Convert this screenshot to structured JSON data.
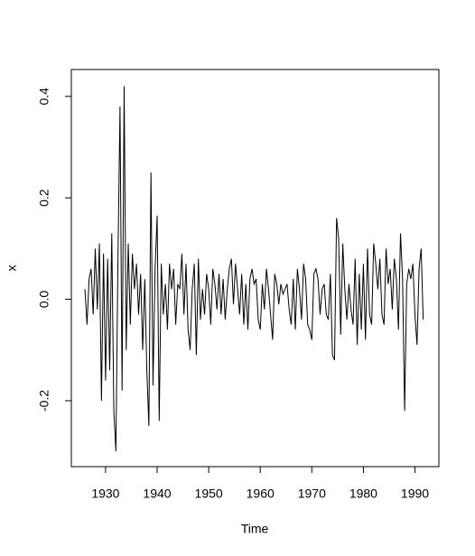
{
  "chart_data": {
    "type": "line",
    "xlabel": "Time",
    "ylabel": "x",
    "color": "#000000",
    "x": [
      1926,
      1926.4,
      1926.8,
      1927.2,
      1927.6,
      1928,
      1928.4,
      1928.8,
      1929.2,
      1929.6,
      1930,
      1930.4,
      1930.8,
      1931.2,
      1931.6,
      1932,
      1932.4,
      1932.8,
      1933.2,
      1933.6,
      1934,
      1934.4,
      1934.8,
      1935.2,
      1935.6,
      1936,
      1936.4,
      1936.8,
      1937.2,
      1937.6,
      1938,
      1938.4,
      1938.8,
      1939.2,
      1939.6,
      1940,
      1940.4,
      1940.8,
      1941.2,
      1941.6,
      1942,
      1942.4,
      1942.8,
      1943.2,
      1943.6,
      1944,
      1944.4,
      1944.8,
      1945.2,
      1945.6,
      1946,
      1946.4,
      1946.8,
      1947.2,
      1947.6,
      1948,
      1948.4,
      1948.8,
      1949.2,
      1949.6,
      1950,
      1950.4,
      1950.8,
      1951.2,
      1951.6,
      1952,
      1952.4,
      1952.8,
      1953.2,
      1953.6,
      1954,
      1954.4,
      1954.8,
      1955.2,
      1955.6,
      1956,
      1956.4,
      1956.8,
      1957.2,
      1957.6,
      1958,
      1958.4,
      1958.8,
      1959.2,
      1959.6,
      1960,
      1960.4,
      1960.8,
      1961.2,
      1961.6,
      1962,
      1962.4,
      1962.8,
      1963.2,
      1963.6,
      1964,
      1964.4,
      1964.8,
      1965.2,
      1965.6,
      1966,
      1966.4,
      1966.8,
      1967.2,
      1967.6,
      1968,
      1968.4,
      1968.8,
      1969.2,
      1969.6,
      1970,
      1970.4,
      1970.8,
      1971.2,
      1971.6,
      1972,
      1972.4,
      1972.8,
      1973.2,
      1973.6,
      1974,
      1974.4,
      1974.8,
      1975.2,
      1975.6,
      1976,
      1976.4,
      1976.8,
      1977.2,
      1977.6,
      1978,
      1978.4,
      1978.8,
      1979.2,
      1979.6,
      1980,
      1980.4,
      1980.8,
      1981.2,
      1981.6,
      1982,
      1982.4,
      1982.8,
      1983.2,
      1983.6,
      1984,
      1984.4,
      1984.8,
      1985.2,
      1985.6,
      1986,
      1986.4,
      1986.8,
      1987.2,
      1987.6,
      1988,
      1988.4,
      1988.8,
      1989.2,
      1989.6,
      1990,
      1990.4,
      1990.8,
      1991.2,
      1991.6
    ],
    "values": [
      0.02,
      -0.05,
      0.04,
      0.06,
      -0.03,
      0.1,
      -0.02,
      0.11,
      -0.2,
      0.09,
      -0.16,
      0.08,
      -0.14,
      0.13,
      -0.22,
      -0.3,
      0.08,
      0.38,
      -0.18,
      0.42,
      -0.1,
      0.11,
      -0.05,
      0.09,
      0.02,
      0.07,
      -0.03,
      0.05,
      -0.1,
      0.04,
      -0.14,
      -0.25,
      0.25,
      -0.17,
      0.06,
      0.165,
      -0.24,
      0.07,
      -0.03,
      0.03,
      -0.06,
      0.07,
      0.02,
      0.06,
      -0.05,
      0.03,
      0.02,
      0.09,
      -0.03,
      0.07,
      -0.06,
      -0.1,
      0.02,
      0.07,
      -0.11,
      0.08,
      -0.04,
      0.02,
      -0.03,
      0.05,
      0.02,
      -0.05,
      0.06,
      0.03,
      -0.02,
      0.05,
      -0.03,
      0.04,
      -0.04,
      0.02,
      0.06,
      0.08,
      -0.01,
      0.07,
      0.02,
      -0.03,
      0.05,
      -0.05,
      0.03,
      -0.06,
      0.04,
      0.06,
      0.03,
      0.04,
      -0.04,
      -0.06,
      0.03,
      -0.02,
      0.06,
      0.02,
      -0.03,
      -0.08,
      0.05,
      0.03,
      -0.01,
      0.03,
      0.01,
      0.02,
      0.03,
      -0.02,
      -0.05,
      0.04,
      -0.06,
      0.06,
      0.02,
      -0.04,
      0.07,
      0.04,
      -0.05,
      -0.06,
      -0.08,
      0.05,
      0.06,
      0.04,
      -0.03,
      0.02,
      0.03,
      -0.03,
      -0.04,
      0.05,
      -0.11,
      -0.12,
      0.16,
      0.12,
      -0.07,
      0.11,
      0.02,
      -0.04,
      0.03,
      -0.02,
      -0.05,
      0.08,
      -0.09,
      0.05,
      -0.06,
      0.07,
      -0.08,
      0.1,
      -0.03,
      -0.05,
      0.11,
      0.07,
      0.02,
      0.08,
      -0.03,
      -0.05,
      0.1,
      0.03,
      0.06,
      -0.02,
      0.08,
      0.04,
      -0.06,
      0.13,
      0.04,
      -0.22,
      0.03,
      0.06,
      0.04,
      0.07,
      -0.03,
      -0.09,
      0.06,
      0.1,
      -0.04
    ],
    "xlim": [
      1923.36,
      1994.64
    ],
    "xticks": [
      1930,
      1940,
      1950,
      1960,
      1970,
      1980,
      1990
    ],
    "ylim": [
      -0.33,
      0.453
    ],
    "yticks": [
      -0.2,
      {
        "value": 0,
        "label": "0.0"
      },
      0.2,
      0.4
    ]
  }
}
